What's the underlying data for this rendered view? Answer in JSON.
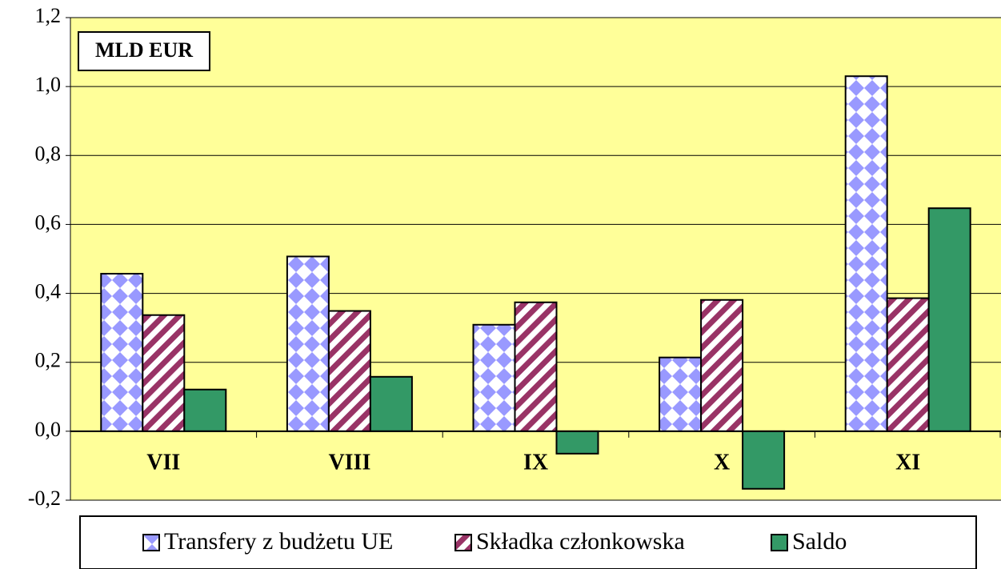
{
  "chart_data": {
    "type": "bar",
    "annotation": "MLD EUR",
    "categories": [
      "VII",
      "VIII",
      "IX",
      "X",
      "XI"
    ],
    "series": [
      {
        "name": "Transfery z budżetu UE",
        "color": "#9999ff",
        "pattern": "diamonds",
        "values": [
          0.457,
          0.507,
          0.309,
          0.214,
          1.03
        ]
      },
      {
        "name": "Składka członkowska",
        "color": "#993366",
        "pattern": "stripes",
        "values": [
          0.337,
          0.349,
          0.374,
          0.381,
          0.386
        ]
      },
      {
        "name": "Saldo",
        "color": "#339966",
        "pattern": "solid",
        "values": [
          0.121,
          0.158,
          -0.065,
          -0.167,
          0.647
        ]
      }
    ],
    "ylim": [
      -0.2,
      1.2
    ],
    "yticks": [
      {
        "value": -0.2,
        "label": "-0,2"
      },
      {
        "value": 0,
        "label": "0,0"
      },
      {
        "value": 0.2,
        "label": "0,2"
      },
      {
        "value": 0.4,
        "label": "0,4"
      },
      {
        "value": 0.6,
        "label": "0,6"
      },
      {
        "value": 0.8,
        "label": "0,8"
      },
      {
        "value": 1.0,
        "label": "1,0"
      },
      {
        "value": 1.2,
        "label": "1,2"
      }
    ],
    "grid": true,
    "background": "#ffff99",
    "legend": "bottom"
  }
}
